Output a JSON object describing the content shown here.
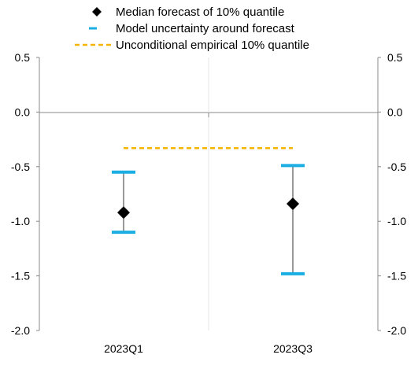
{
  "chart_data": {
    "type": "errorbar",
    "categories": [
      "2023Q1",
      "2023Q3"
    ],
    "median_forecast": [
      -0.92,
      -0.84
    ],
    "uncertainty_upper": [
      -0.55,
      -0.49
    ],
    "uncertainty_lower": [
      -1.1,
      -1.48
    ],
    "unconditional_empirical_quantile": -0.33,
    "ylim": [
      -2.0,
      0.5
    ],
    "yticks": [
      0.5,
      0.0,
      -0.5,
      -1.0,
      -1.5,
      -2.0
    ],
    "ytick_labels": [
      "0.5",
      "0.0",
      "-0.5",
      "-1.0",
      "-1.5",
      "-2.0"
    ],
    "legend": {
      "position": "top",
      "entries": [
        "Median forecast of 10% quantile",
        "Model uncertainty around forecast",
        "Unconditional empirical 10% quantile"
      ]
    },
    "grid": false,
    "colors": {
      "marker": "#000000",
      "uncertainty": "#1aaee3",
      "whisker": "#333333",
      "empirical": "#f5b400",
      "axis": "#888888",
      "vertical_divider": "#e6e6e6"
    }
  }
}
